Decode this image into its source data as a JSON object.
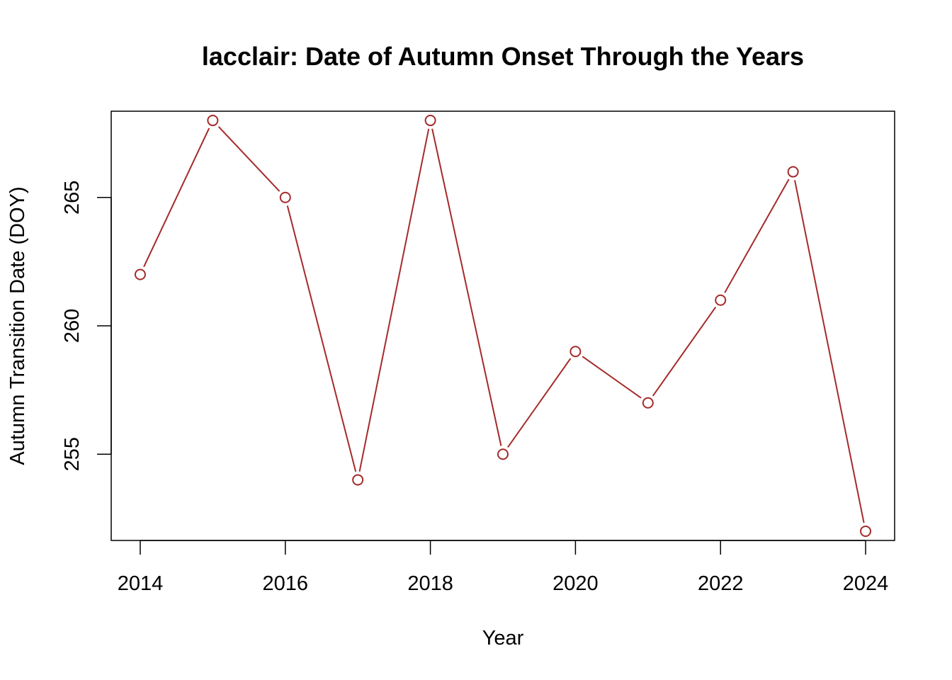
{
  "chart_data": {
    "type": "line",
    "title": "lacclair: Date of Autumn Onset Through the Years",
    "xlabel": "Year",
    "ylabel": "Autumn Transition Date (DOY)",
    "x": [
      2014,
      2015,
      2016,
      2017,
      2018,
      2019,
      2020,
      2021,
      2022,
      2023,
      2024
    ],
    "series": [
      {
        "values": [
          262,
          268,
          265,
          254,
          268,
          255,
          259,
          257,
          261,
          266,
          252
        ]
      }
    ],
    "xlim": [
      2013.6,
      2024.4
    ],
    "ylim": [
      251.64,
      268.36
    ],
    "x_ticks": [
      2014,
      2016,
      2018,
      2020,
      2022,
      2024
    ],
    "y_ticks": [
      255,
      260,
      265
    ],
    "marker": "open-circle",
    "grid": false,
    "legend": "none",
    "colors": {
      "line": "#A52A2A",
      "axis": "#000000",
      "background": "#FFFFFF"
    }
  }
}
